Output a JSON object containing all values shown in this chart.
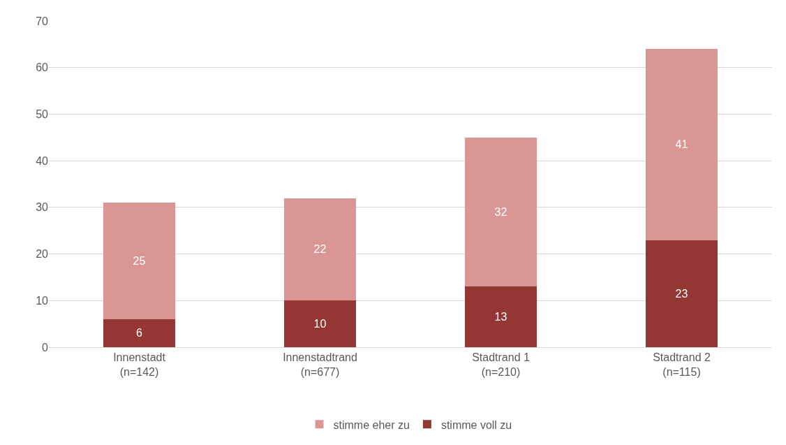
{
  "chart_data": {
    "type": "bar",
    "stacked": true,
    "categories": [
      "Innenstadt\n(n=142)",
      "Innenstadtrand\n(n=677)",
      "Stadtrand 1\n(n=210)",
      "Stadtrand 2\n(n=115)"
    ],
    "series": [
      {
        "name": "stimme voll zu",
        "color": "#943634",
        "values": [
          6,
          10,
          13,
          23
        ]
      },
      {
        "name": "stimme eher zu",
        "color": "#d99694",
        "values": [
          25,
          22,
          32,
          41
        ]
      }
    ],
    "ylim": [
      0,
      70
    ],
    "yticks": [
      0,
      10,
      20,
      30,
      40,
      50,
      60,
      70
    ],
    "grid": "y",
    "legend": "bottom",
    "data_labels": true
  }
}
